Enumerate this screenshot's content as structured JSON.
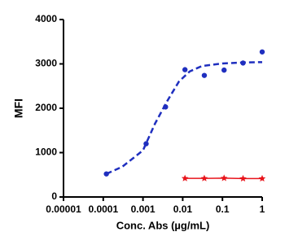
{
  "chart_data": {
    "type": "scatter",
    "x_label": "Conc. Abs (µg/mL)",
    "y_label": "MFI",
    "xscale": "log",
    "xlim": [
      1e-05,
      1
    ],
    "xticks": [
      1e-05,
      0.0001,
      0.001,
      0.01,
      0.1,
      1
    ],
    "ylim": [
      0,
      4000
    ],
    "yticks": [
      0,
      1000,
      2000,
      3000,
      4000
    ],
    "series": [
      {
        "color": "#1f2fbf",
        "marker": "circle",
        "line": "none",
        "x": [
          0.00012,
          0.0012,
          0.0037,
          0.0114,
          0.035,
          0.11,
          0.33,
          1
        ],
        "values": [
          520,
          1200,
          2030,
          2870,
          2740,
          2860,
          3020,
          3270
        ]
      },
      {
        "color": "#1f2fbf",
        "marker": "none",
        "line": "dashed",
        "x": [
          0.00012,
          0.0003,
          0.001,
          0.002,
          0.004,
          0.008,
          0.015,
          0.03,
          0.1,
          0.3,
          1
        ],
        "values": [
          520,
          680,
          1050,
          1650,
          2150,
          2600,
          2830,
          2950,
          3010,
          3030,
          3040
        ]
      },
      {
        "color": "#e8141b",
        "marker": "star",
        "line": "solid",
        "x": [
          0.0114,
          0.035,
          0.11,
          0.33,
          1
        ],
        "values": [
          420,
          420,
          425,
          415,
          415
        ]
      }
    ]
  }
}
